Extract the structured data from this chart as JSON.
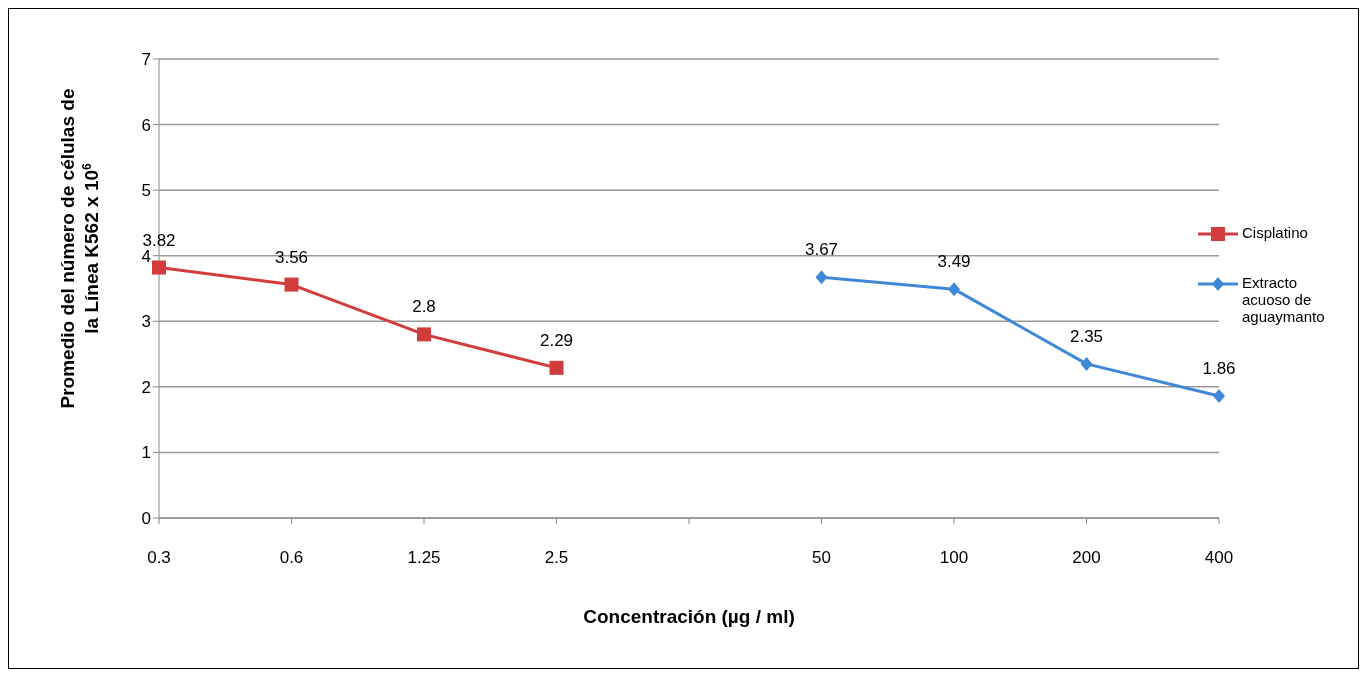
{
  "chart_data": {
    "type": "line",
    "xlabel": "Concentración (µg / ml)",
    "ylabel": "Promedio del número de células de la Línea K562 x 10$^{6}$",
    "categories": [
      "0.3",
      "0.6",
      "1.25",
      "2.5",
      null,
      "50",
      "100",
      "200",
      "400"
    ],
    "series": [
      {
        "name": "Cisplatino",
        "color": "#d23c3c",
        "marker": "square",
        "values": [
          3.82,
          3.56,
          2.8,
          2.29,
          null,
          null,
          null,
          null,
          null
        ]
      },
      {
        "name": "Extracto acuoso de aguaymanto",
        "color": "#3f88d8",
        "marker": "diamond",
        "values": [
          null,
          null,
          null,
          null,
          null,
          3.67,
          3.49,
          2.35,
          1.86
        ]
      }
    ],
    "ylim": [
      0,
      7
    ],
    "yticks": [
      0,
      1,
      2,
      3,
      4,
      5,
      6,
      7
    ],
    "grid": "y",
    "legend": "right",
    "data_labels": true
  }
}
